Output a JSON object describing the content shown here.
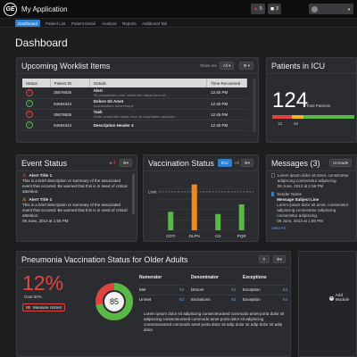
{
  "app": {
    "title": "My Application",
    "logo": "GE"
  },
  "topbar": {
    "alerts_count": "5",
    "messages_count": "3"
  },
  "nav": {
    "tabs": [
      "Dashboard",
      "Patient List",
      "Patient Detail",
      "Analysis",
      "Reports",
      "Additional Tab"
    ]
  },
  "page": {
    "title": "Dashboard"
  },
  "worklist": {
    "title": "Upcoming Worklist Items",
    "show_me_label": "Show me",
    "show_me_value": "All",
    "columns": [
      "Status",
      "Patient ID",
      "Details",
      "Time Recovered"
    ],
    "rows": [
      {
        "status": "bad",
        "pid": "35576835",
        "title": "Alert",
        "sub": "Sit perspiciatis unde omnis iste natus error sit...",
        "time": "12:45 PM"
      },
      {
        "status": "ok",
        "pid": "84694344",
        "title": "Dolore Sit Amet",
        "sub": "Accusantium doloremque",
        "time": "12:45 PM"
      },
      {
        "status": "bad",
        "pid": "35576835",
        "title": "Task",
        "sub": "Unde omnis iste natus error sit voluptatem accusan...",
        "time": "12:45 PM"
      },
      {
        "status": "ok",
        "pid": "84694344",
        "title": "Description Header 4",
        "sub": "",
        "time": "12:45 PM"
      }
    ]
  },
  "icu": {
    "title": "Patients in ICU",
    "value": "124",
    "value_label": "Total Patients",
    "left": "12",
    "right": "45"
  },
  "event": {
    "title": "Event Status",
    "count": "4",
    "items": [
      {
        "title": "Alert Title 1",
        "body": "This is a brief description or summary of the associated event that occured. Be warned that this is in need of critical attention.",
        "date": ""
      },
      {
        "title": "Alert Title 1",
        "body": "This is a brief description or summary of the associated event that occured. Be warned that this is in need of critical attention.",
        "date": "09 June, 2013 at 1:56 PM"
      }
    ]
  },
  "vaccination": {
    "title": "Vaccination Status",
    "toggle_on": "ICU",
    "toggle_off": "All",
    "limit_label": "Limit"
  },
  "chart_data": {
    "type": "bar",
    "categories": [
      "CDTI",
      "DLPN",
      "CD",
      "PQR"
    ],
    "values": [
      25,
      62,
      22,
      35
    ],
    "colors": [
      "#59b947",
      "#f08a1e",
      "#59b947",
      "#59b947"
    ],
    "limit": 52,
    "ylim": [
      0,
      70
    ],
    "grid": true
  },
  "messages": {
    "title": "Messages (3)",
    "filter": "Unread",
    "items": [
      {
        "sub": "",
        "body": "Lorem ipsum dolor sit amet, consectetur adipiscing consectetur adipiscing.",
        "date": "08 June, 2013 at 1:56 PM",
        "checked": false
      },
      {
        "sub": "Sender Name",
        "body": "",
        "date": "",
        "checked": true
      },
      {
        "sub": "Message Subject Line",
        "body": "Lorem ipsum dolor sit amet, consectetur adipiscing consectetur adipiscing consectetur adipiscing.",
        "date": "08 June, 2013 at 1:56 PM",
        "checked": false
      }
    ],
    "link": "View All"
  },
  "pneumonia": {
    "title": "Pneumonia Vaccination Status for Older Adults",
    "percent": "12%",
    "goal": "Goal 60%",
    "gauge_value": "85",
    "gauge_fraction": 0.72,
    "measure_label": "Measure Unmet",
    "tables": [
      {
        "header": "Numerator",
        "rows": [
          [
            "Met",
            "63"
          ],
          [
            "Unmet",
            "63"
          ]
        ]
      },
      {
        "header": "Denominator",
        "rows": [
          [
            "Denom",
            "63"
          ],
          [
            "Exclusions",
            "63"
          ]
        ]
      },
      {
        "header": "Exceptions",
        "rows": [
          [
            "Exception",
            "63"
          ],
          [
            "Exception",
            "63"
          ]
        ]
      }
    ],
    "footnote": "Lorem ipsum dolor sit adipiscing consecteurared commodo amet porta dolor sit adipiscing consecteurared commodo amet porta dolor sit adipiscing consecteurared commodo amet porta dolor sit adip dolor sit adip dolor sit adip dolor."
  },
  "add_module": {
    "label": "Add Module"
  }
}
